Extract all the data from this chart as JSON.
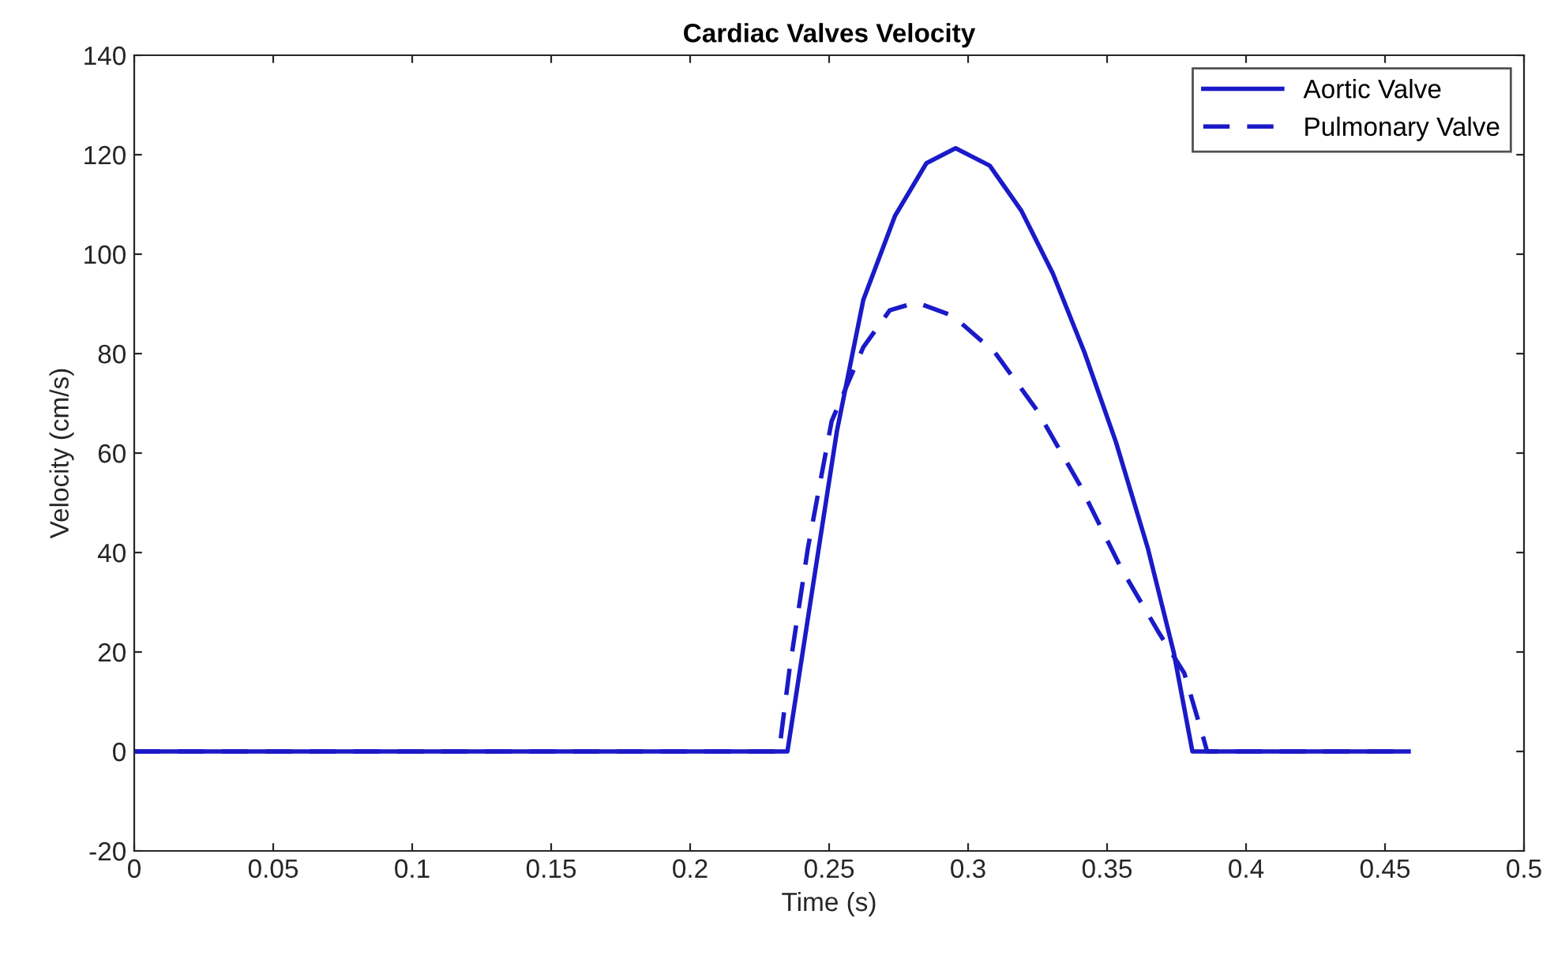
{
  "chart_data": {
    "type": "line",
    "title": "Cardiac Valves Velocity",
    "xlabel": "Time (s)",
    "ylabel": "Velocity (cm/s)",
    "xlim": [
      0,
      0.5
    ],
    "ylim": [
      -20,
      140
    ],
    "xticks": [
      0,
      0.05,
      0.1,
      0.15,
      0.2,
      0.25,
      0.3,
      0.35,
      0.4,
      0.45,
      0.5
    ],
    "yticks": [
      -20,
      0,
      20,
      40,
      60,
      80,
      100,
      120,
      140
    ],
    "grid": false,
    "legend": "top right",
    "series": [
      {
        "name": "Aortic Valve",
        "color": "#1a1ac8",
        "line_style": "solid",
        "x": [
          0,
          0.235,
          0.2434,
          0.2528,
          0.2623,
          0.2737,
          0.285,
          0.2955,
          0.3078,
          0.3191,
          0.3305,
          0.3419,
          0.3532,
          0.3646,
          0.374,
          0.3807,
          0.4585
        ],
        "values": [
          0,
          0,
          30.5,
          64.4,
          90.8,
          107.7,
          118.3,
          121.3,
          117.8,
          108.8,
          96.1,
          80.2,
          62.2,
          41,
          19.9,
          0,
          0
        ]
      },
      {
        "name": "Pulmonary Valve",
        "color": "#1a1ac8",
        "line_style": "dashed",
        "x": [
          0,
          0.232,
          0.2358,
          0.2424,
          0.2509,
          0.2623,
          0.2718,
          0.2813,
          0.2945,
          0.3097,
          0.3248,
          0.34,
          0.3551,
          0.3684,
          0.3778,
          0.3845,
          0.386,
          0.4585
        ],
        "values": [
          0,
          0,
          16.7,
          41,
          66.4,
          81.3,
          88.7,
          90.3,
          87.6,
          80.2,
          68.6,
          53.8,
          36.8,
          24.1,
          15.7,
          3,
          0,
          0
        ]
      }
    ]
  }
}
